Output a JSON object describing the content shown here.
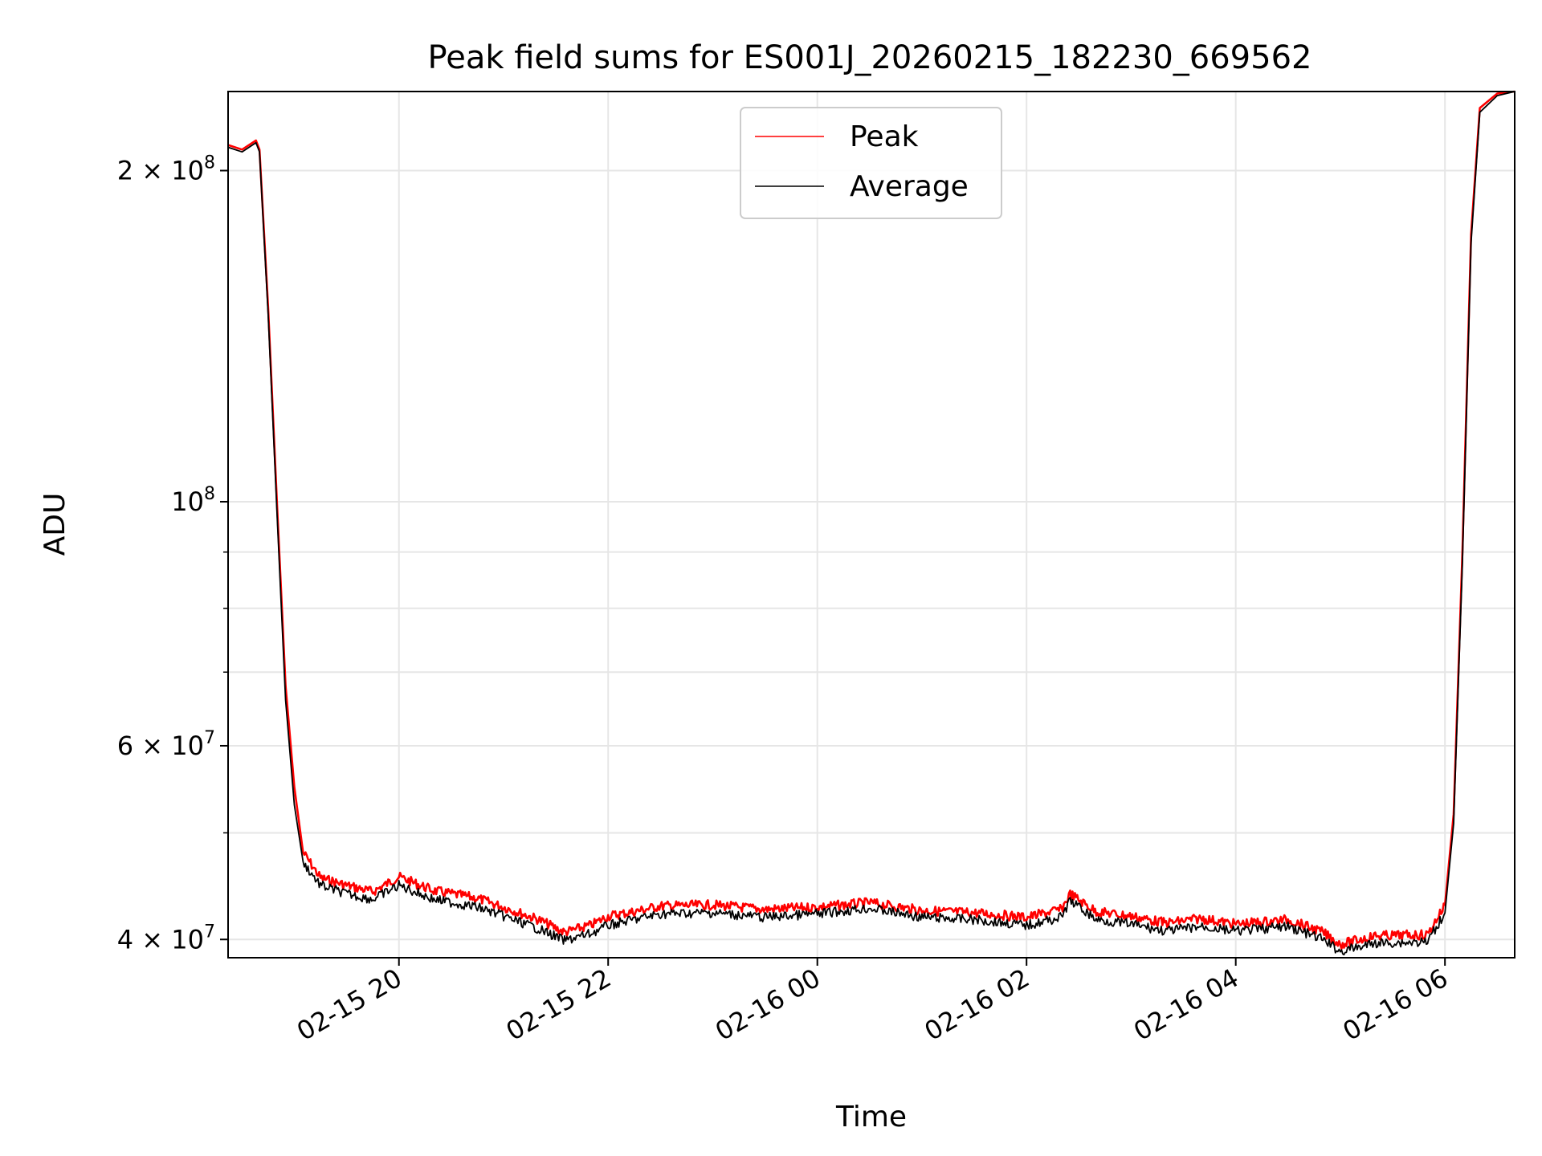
{
  "chart_data": {
    "type": "line",
    "title": "Peak field sums for ES001J_20260215_182230_669562",
    "xlabel": "Time",
    "ylabel": "ADU",
    "x_range": [
      "2026-02-15 18:22",
      "2026-02-16 06:40"
    ],
    "ylim": [
      38500000,
      236000000
    ],
    "yscale": "log",
    "grid": true,
    "legend_position": "top-center",
    "x_ticks": [
      {
        "label": "02-15 20",
        "time": "2026-02-15 20:00"
      },
      {
        "label": "02-15 22",
        "time": "2026-02-15 22:00"
      },
      {
        "label": "02-16 00",
        "time": "2026-02-16 00:00"
      },
      {
        "label": "02-16 02",
        "time": "2026-02-16 02:00"
      },
      {
        "label": "02-16 04",
        "time": "2026-02-16 04:00"
      },
      {
        "label": "02-16 06",
        "time": "2026-02-16 06:00"
      }
    ],
    "y_ticks": [
      {
        "base": "4 × 10",
        "exp": "7",
        "value": 40000000
      },
      {
        "base": "6 × 10",
        "exp": "7",
        "value": 60000000
      },
      {
        "base": "10",
        "exp": "8",
        "value": 100000000
      },
      {
        "base": "2 × 10",
        "exp": "8",
        "value": 200000000
      }
    ],
    "series": [
      {
        "name": "Peak",
        "color": "#ff0000",
        "points": [
          [
            "2026-02-15 18:22",
            211000000
          ],
          [
            "2026-02-15 18:30",
            209000000
          ],
          [
            "2026-02-15 18:38",
            213000000
          ],
          [
            "2026-02-15 18:40",
            209000000
          ],
          [
            "2026-02-15 18:45",
            150000000
          ],
          [
            "2026-02-15 18:50",
            100000000
          ],
          [
            "2026-02-15 18:55",
            68000000
          ],
          [
            "2026-02-15 19:00",
            55000000
          ],
          [
            "2026-02-15 19:05",
            48000000
          ],
          [
            "2026-02-15 19:15",
            45500000
          ],
          [
            "2026-02-15 19:30",
            44800000
          ],
          [
            "2026-02-15 19:45",
            44200000
          ],
          [
            "2026-02-15 20:00",
            45600000
          ],
          [
            "2026-02-15 20:20",
            44300000
          ],
          [
            "2026-02-15 20:45",
            43600000
          ],
          [
            "2026-02-15 21:00",
            42800000
          ],
          [
            "2026-02-15 21:20",
            41700000
          ],
          [
            "2026-02-15 21:35",
            40600000
          ],
          [
            "2026-02-15 21:50",
            41200000
          ],
          [
            "2026-02-15 22:00",
            42000000
          ],
          [
            "2026-02-15 22:15",
            42400000
          ],
          [
            "2026-02-15 22:30",
            42900000
          ],
          [
            "2026-02-15 23:00",
            43000000
          ],
          [
            "2026-02-15 23:30",
            42600000
          ],
          [
            "2026-02-16 00:00",
            42800000
          ],
          [
            "2026-02-16 00:30",
            43200000
          ],
          [
            "2026-02-16 01:00",
            42500000
          ],
          [
            "2026-02-16 01:30",
            42300000
          ],
          [
            "2026-02-16 02:00",
            41900000
          ],
          [
            "2026-02-16 02:20",
            42600000
          ],
          [
            "2026-02-16 02:25",
            44000000
          ],
          [
            "2026-02-16 02:40",
            42400000
          ],
          [
            "2026-02-16 03:00",
            42000000
          ],
          [
            "2026-02-16 03:20",
            41400000
          ],
          [
            "2026-02-16 03:40",
            41800000
          ],
          [
            "2026-02-16 04:00",
            41300000
          ],
          [
            "2026-02-16 04:30",
            41700000
          ],
          [
            "2026-02-16 04:50",
            40600000
          ],
          [
            "2026-02-16 05:00",
            39600000
          ],
          [
            "2026-02-16 05:20",
            40300000
          ],
          [
            "2026-02-16 05:50",
            40400000
          ],
          [
            "2026-02-16 06:00",
            43000000
          ],
          [
            "2026-02-16 06:05",
            52000000
          ],
          [
            "2026-02-16 06:10",
            90000000
          ],
          [
            "2026-02-16 06:15",
            175000000
          ],
          [
            "2026-02-16 06:20",
            228000000
          ],
          [
            "2026-02-16 06:30",
            235000000
          ],
          [
            "2026-02-16 06:40",
            236000000
          ]
        ]
      },
      {
        "name": "Average",
        "color": "#000000",
        "points": [
          [
            "2026-02-15 18:22",
            210000000
          ],
          [
            "2026-02-15 18:30",
            208000000
          ],
          [
            "2026-02-15 18:38",
            212000000
          ],
          [
            "2026-02-15 18:40",
            208000000
          ],
          [
            "2026-02-15 18:45",
            148000000
          ],
          [
            "2026-02-15 18:50",
            98000000
          ],
          [
            "2026-02-15 18:55",
            66000000
          ],
          [
            "2026-02-15 19:00",
            53000000
          ],
          [
            "2026-02-15 19:05",
            47000000
          ],
          [
            "2026-02-15 19:15",
            44800000
          ],
          [
            "2026-02-15 19:30",
            44000000
          ],
          [
            "2026-02-15 19:45",
            43500000
          ],
          [
            "2026-02-15 20:00",
            44800000
          ],
          [
            "2026-02-15 20:20",
            43500000
          ],
          [
            "2026-02-15 20:45",
            42800000
          ],
          [
            "2026-02-15 21:00",
            42000000
          ],
          [
            "2026-02-15 21:20",
            40900000
          ],
          [
            "2026-02-15 21:35",
            39900000
          ],
          [
            "2026-02-15 21:50",
            40500000
          ],
          [
            "2026-02-15 22:00",
            41200000
          ],
          [
            "2026-02-15 22:15",
            41700000
          ],
          [
            "2026-02-15 22:30",
            42200000
          ],
          [
            "2026-02-15 23:00",
            42300000
          ],
          [
            "2026-02-15 23:30",
            41900000
          ],
          [
            "2026-02-16 00:00",
            42200000
          ],
          [
            "2026-02-16 00:30",
            42700000
          ],
          [
            "2026-02-16 01:00",
            41900000
          ],
          [
            "2026-02-16 01:30",
            41700000
          ],
          [
            "2026-02-16 02:00",
            41200000
          ],
          [
            "2026-02-16 02:20",
            41900000
          ],
          [
            "2026-02-16 02:25",
            43400000
          ],
          [
            "2026-02-16 02:40",
            41700000
          ],
          [
            "2026-02-16 03:00",
            41300000
          ],
          [
            "2026-02-16 03:20",
            40700000
          ],
          [
            "2026-02-16 03:40",
            41100000
          ],
          [
            "2026-02-16 04:00",
            40700000
          ],
          [
            "2026-02-16 04:30",
            41100000
          ],
          [
            "2026-02-16 04:50",
            40000000
          ],
          [
            "2026-02-16 05:00",
            39000000
          ],
          [
            "2026-02-16 05:20",
            39700000
          ],
          [
            "2026-02-16 05:50",
            39800000
          ],
          [
            "2026-02-16 06:00",
            42300000
          ],
          [
            "2026-02-16 06:05",
            51000000
          ],
          [
            "2026-02-16 06:10",
            88000000
          ],
          [
            "2026-02-16 06:15",
            172000000
          ],
          [
            "2026-02-16 06:20",
            226000000
          ],
          [
            "2026-02-16 06:30",
            234000000
          ],
          [
            "2026-02-16 06:40",
            236000000
          ]
        ]
      }
    ]
  }
}
